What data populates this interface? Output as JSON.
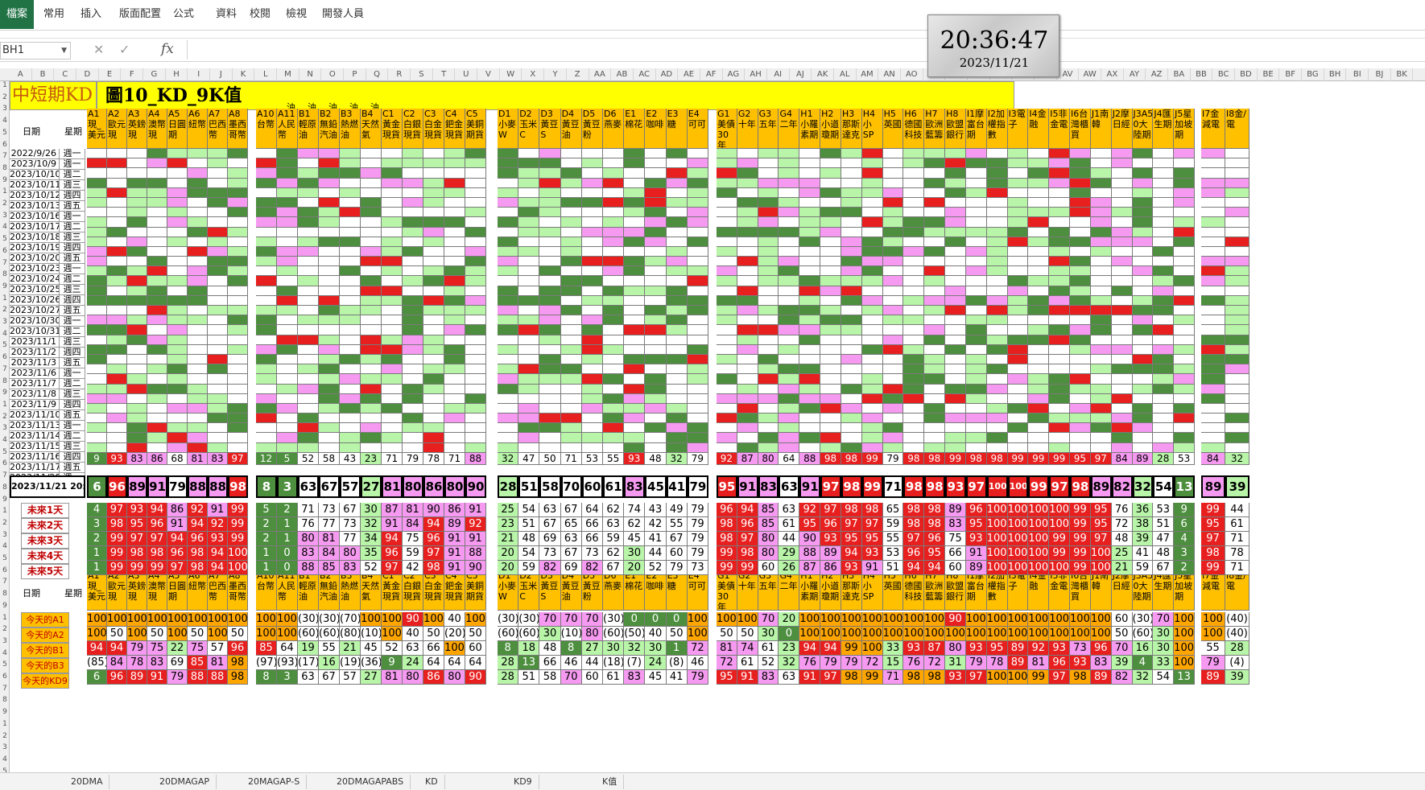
{
  "ribbon": {
    "tabs": [
      "檔案",
      "常用",
      "插入",
      "版面配置",
      "公式",
      "資料",
      "校閱",
      "檢視",
      "開發人員"
    ]
  },
  "formula_bar": {
    "name_box": "BH1",
    "fx": "fx",
    "value": ""
  },
  "col_letters": [
    "A",
    "B",
    "C",
    "D",
    "E",
    "F",
    "G",
    "H",
    "I",
    "J",
    "K",
    "L",
    "M",
    "N",
    "O",
    "P",
    "Q",
    "R",
    "S",
    "T",
    "U",
    "V",
    "W",
    "X",
    "Y",
    "Z",
    "AA",
    "AB",
    "AC",
    "AD",
    "AE",
    "AF",
    "AG",
    "AH",
    "AI",
    "AJ",
    "AK",
    "AL",
    "AM",
    "AN",
    "AO",
    "AP",
    "AQ",
    "AR",
    "AS",
    "AT",
    "AU",
    "AV",
    "AW",
    "AX",
    "AY",
    "AZ",
    "BA",
    "BB",
    "BC",
    "BD",
    "BE",
    "BF",
    "BG",
    "BH",
    "BI",
    "BJ",
    "BK"
  ],
  "banner": {
    "left": "中短期KD",
    "title": "圖10_KD_9K值"
  },
  "clock": {
    "time": "20:36:47",
    "date": "2023/11/21"
  },
  "labels": {
    "date": "日期",
    "weekday": "星期",
    "oil": "油"
  },
  "headers": {
    "A": [
      "A1 現_美元",
      "A2 歐元 現",
      "A3 英鎊 現",
      "A4 澳幣 現",
      "A5 日圓 期",
      "A6 紐幣",
      "A7 巴西 幣",
      "A8 墨西 哥幣"
    ],
    "B": [
      "A10 台幣",
      "A11 人民 幣",
      "B1 輕原 油",
      "B2 無鉛 汽油",
      "B3 熱燃 油",
      "B4 天然 氣",
      "C1 黃金 現貨",
      "C2 白銀 現貨",
      "C3 白金 現貨",
      "C4 鈀金 現貨",
      "C5 美銅 期貨"
    ],
    "C": [
      "D1 小麥 W",
      "D2 玉米 C",
      "D3 黃豆 S",
      "D4 黃豆 油",
      "D5 黃豆 粉",
      "D6 燕麥",
      "E1 棉花",
      "E2 咖啡",
      "E3 糖",
      "E4 可可"
    ],
    "D": [
      "G1 美債 30年",
      "G2 十年",
      "G3 五年",
      "G4 二年",
      "H1 小羅 素期",
      "H2 小道 瓊期",
      "H3 那斯 達克",
      "H4 小SP",
      "H5 英國",
      "H6 德國 科技",
      "H7 歐洲 藍籌",
      "H8 歐盟 銀行",
      "I1摩 富台 期",
      "I2加 權指 數",
      "I3電 子",
      "I4金 融",
      "I5非 金電",
      "I6台 灣櫃 買",
      "J1南 韓",
      "J2摩 日經",
      "J3A5 0大 陸期",
      "J4匯 生期",
      "J5星 加坡 期"
    ],
    "E": [
      "I7金 減電",
      "I8金/ 電"
    ]
  },
  "dates": [
    "2022/9/26",
    "2023/10/9",
    "2023/10/10",
    "2023/10/11",
    "2023/10/12",
    "2023/10/13",
    "2023/10/16",
    "2023/10/17",
    "2023/10/18",
    "2023/10/19",
    "2023/10/20",
    "2023/10/23",
    "2023/10/24",
    "2023/10/25",
    "2023/10/26",
    "2023/10/27",
    "2023/10/30",
    "2023/10/31",
    "2023/11/1",
    "2023/11/2",
    "2023/11/3",
    "2023/11/6",
    "2023/11/7",
    "2023/11/8",
    "2023/11/9",
    "2023/11/10",
    "2023/11/13",
    "2023/11/14",
    "2023/11/15",
    "2023/11/16",
    "2023/11/17",
    "2023/11/20"
  ],
  "weekdays": [
    "週一",
    "週一",
    "週二",
    "週三",
    "週四",
    "週五",
    "週一",
    "週二",
    "週三",
    "週四",
    "週五",
    "週一",
    "週二",
    "週三",
    "週四",
    "週五",
    "週一",
    "週二",
    "週三",
    "週四",
    "週五",
    "週一",
    "週二",
    "週三",
    "週四",
    "週五",
    "週一",
    "週二",
    "週三",
    "週四",
    "週五",
    "週一"
  ],
  "now_label": "2023/11/21 20:36",
  "now": {
    "A": [
      6,
      96,
      89,
      91,
      79,
      88,
      88,
      98
    ],
    "B": [
      8,
      3,
      63,
      67,
      57,
      27,
      81,
      80,
      86,
      80,
      90
    ],
    "C": [
      28,
      51,
      58,
      70,
      60,
      61,
      83,
      45,
      41,
      79
    ],
    "D": [
      95,
      91,
      83,
      63,
      91,
      97,
      98,
      99,
      71,
      98,
      98,
      93,
      97,
      100,
      100,
      99,
      97,
      98,
      89,
      82,
      32,
      54,
      13
    ],
    "E": [
      89,
      39
    ]
  },
  "last": {
    "A": [
      9,
      93,
      83,
      86,
      68,
      81,
      83,
      97
    ],
    "B": [
      12,
      5,
      52,
      58,
      43,
      23,
      71,
      79,
      78,
      71,
      88
    ],
    "C": [
      32,
      47,
      50,
      71,
      53,
      55,
      93,
      48,
      32,
      79
    ],
    "D": [
      92,
      87,
      80,
      64,
      88,
      98,
      98,
      99,
      79,
      98,
      98,
      99,
      98,
      98,
      99,
      99,
      99,
      95,
      97,
      84,
      89,
      28,
      53
    ],
    "E": [
      84,
      32
    ]
  },
  "future_labels": [
    "未來1天",
    "未來2天",
    "未來3天",
    "未來4天",
    "未來5天"
  ],
  "future": {
    "A": [
      [
        4,
        97,
        93,
        94,
        86,
        92,
        91,
        99
      ],
      [
        3,
        98,
        95,
        96,
        91,
        94,
        92,
        99
      ],
      [
        2,
        99,
        97,
        97,
        94,
        96,
        93,
        99
      ],
      [
        1,
        99,
        98,
        98,
        96,
        98,
        94,
        100
      ],
      [
        1,
        99,
        99,
        99,
        97,
        98,
        94,
        100
      ]
    ],
    "B": [
      [
        5,
        2,
        71,
        73,
        67,
        30,
        87,
        81,
        90,
        86,
        91
      ],
      [
        2,
        1,
        76,
        77,
        73,
        32,
        91,
        84,
        94,
        89,
        92
      ],
      [
        2,
        1,
        80,
        81,
        77,
        34,
        94,
        75,
        96,
        91,
        91
      ],
      [
        1,
        0,
        83,
        84,
        80,
        35,
        96,
        59,
        97,
        91,
        88
      ],
      [
        1,
        0,
        88,
        85,
        83,
        52,
        97,
        42,
        98,
        91,
        90
      ]
    ],
    "C": [
      [
        25,
        54,
        63,
        67,
        64,
        62,
        74,
        43,
        49,
        79
      ],
      [
        23,
        51,
        67,
        65,
        66,
        63,
        62,
        42,
        55,
        79
      ],
      [
        21,
        48,
        69,
        63,
        66,
        59,
        45,
        41,
        67,
        79
      ],
      [
        20,
        54,
        73,
        67,
        73,
        62,
        30,
        44,
        60,
        79
      ],
      [
        20,
        59,
        82,
        69,
        82,
        67,
        20,
        52,
        79,
        73
      ]
    ],
    "D": [
      [
        96,
        94,
        85,
        63,
        92,
        97,
        98,
        98,
        65,
        98,
        98,
        89,
        96,
        100,
        100,
        100,
        100,
        99,
        95,
        76,
        36,
        53,
        9
      ],
      [
        98,
        96,
        85,
        61,
        95,
        96,
        97,
        97,
        59,
        98,
        98,
        83,
        95,
        100,
        100,
        100,
        100,
        99,
        95,
        72,
        38,
        51,
        6
      ],
      [
        98,
        97,
        80,
        44,
        90,
        93,
        95,
        95,
        55,
        97,
        96,
        75,
        93,
        100,
        100,
        100,
        99,
        99,
        97,
        48,
        39,
        47,
        4
      ],
      [
        99,
        98,
        80,
        29,
        88,
        89,
        94,
        93,
        53,
        96,
        95,
        66,
        91,
        100,
        100,
        100,
        99,
        99,
        100,
        25,
        41,
        48,
        3
      ],
      [
        99,
        99,
        60,
        26,
        87,
        86,
        93,
        91,
        51,
        94,
        94,
        60,
        89,
        100,
        100,
        100,
        100,
        99,
        100,
        21,
        59,
        67,
        2
      ]
    ],
    "E": [
      [
        99,
        44
      ],
      [
        95,
        61
      ],
      [
        97,
        71
      ],
      [
        98,
        78
      ],
      [
        99,
        71
      ]
    ]
  },
  "today_labels": [
    "今天的A1",
    "今天的A2",
    "今天的B1",
    "今天的B3",
    "今天的KD9"
  ],
  "today": {
    "A": [
      [
        "100",
        "100",
        "100",
        "100",
        "100",
        "100",
        "100",
        "100"
      ],
      [
        "100",
        "50",
        "100",
        "50",
        "100",
        "50",
        "100",
        "50"
      ],
      [
        "94",
        "94",
        "79",
        "75",
        "22",
        "75",
        "57",
        "96"
      ],
      [
        "(85)",
        "84",
        "78",
        "83",
        "69",
        "85",
        "81",
        "98"
      ],
      [
        "6",
        "96",
        "89",
        "91",
        "79",
        "88",
        "88",
        "98"
      ]
    ],
    "B": [
      [
        "100",
        "100",
        "(30)",
        "(30)",
        "(70)",
        "100",
        "100",
        "90",
        "100",
        "40",
        "100"
      ],
      [
        "100",
        "100",
        "(60)",
        "(60)",
        "(80)",
        "(10)",
        "100",
        "40",
        "50",
        "(20)",
        "50"
      ],
      [
        "85",
        "64",
        "19",
        "55",
        "21",
        "45",
        "52",
        "63",
        "66",
        "100",
        "60"
      ],
      [
        "(97)",
        "(93)",
        "(17)",
        "16",
        "(19)",
        "(36)",
        "9",
        "24",
        "64",
        "64",
        "64"
      ],
      [
        "8",
        "3",
        "63",
        "67",
        "57",
        "27",
        "81",
        "80",
        "86",
        "80",
        "90"
      ]
    ],
    "C": [
      [
        "(30)",
        "(30)",
        "70",
        "70",
        "70",
        "(30)",
        "0",
        "0",
        "0",
        "100"
      ],
      [
        "(60)",
        "(60)",
        "30",
        "(10)",
        "80",
        "(60)",
        "(50)",
        "40",
        "50",
        "100"
      ],
      [
        "8",
        "18",
        "48",
        "8",
        "27",
        "30",
        "32",
        "30",
        "1",
        "72"
      ],
      [
        "28",
        "13",
        "66",
        "46",
        "44",
        "(18)",
        "(7)",
        "24",
        "(8)",
        "46"
      ],
      [
        "28",
        "51",
        "58",
        "70",
        "60",
        "61",
        "83",
        "45",
        "41",
        "79"
      ]
    ],
    "D": [
      [
        "100",
        "100",
        "70",
        "20",
        "100",
        "100",
        "100",
        "100",
        "100",
        "100",
        "100",
        "90",
        "100",
        "100",
        "100",
        "100",
        "100",
        "100",
        "100",
        "60",
        "(30)",
        "70",
        "100"
      ],
      [
        "50",
        "50",
        "30",
        "0",
        "100",
        "100",
        "100",
        "100",
        "100",
        "100",
        "100",
        "100",
        "100",
        "100",
        "100",
        "100",
        "100",
        "100",
        "100",
        "50",
        "(60)",
        "30",
        "100"
      ],
      [
        "81",
        "74",
        "61",
        "23",
        "94",
        "94",
        "99",
        "100",
        "33",
        "93",
        "87",
        "80",
        "93",
        "95",
        "89",
        "92",
        "93",
        "73",
        "96",
        "70",
        "16",
        "30",
        "100"
      ],
      [
        "72",
        "61",
        "52",
        "32",
        "76",
        "79",
        "79",
        "72",
        "15",
        "76",
        "72",
        "31",
        "79",
        "78",
        "89",
        "81",
        "96",
        "93",
        "83",
        "39",
        "4",
        "33",
        "100"
      ],
      [
        "95",
        "91",
        "83",
        "63",
        "91",
        "97",
        "98",
        "99",
        "71",
        "98",
        "98",
        "93",
        "97",
        "100",
        "100",
        "99",
        "97",
        "98",
        "89",
        "82",
        "32",
        "54",
        "13"
      ]
    ],
    "E": [
      [
        "100",
        "(40)"
      ],
      [
        "100",
        "(40)"
      ],
      [
        "55",
        "28"
      ],
      [
        "79",
        "(4)"
      ],
      [
        "89",
        "39"
      ]
    ]
  },
  "sheet_tabs": [
    "20DMA",
    "20DMAGAP",
    "20MAGAP-S",
    "20DMAGAPABS",
    "KD",
    "KD9",
    "K值"
  ]
}
